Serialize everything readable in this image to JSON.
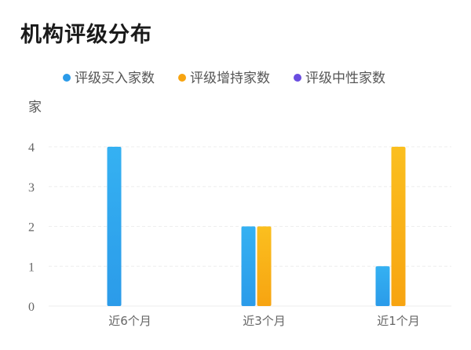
{
  "chart_data": {
    "type": "bar",
    "title": "机构评级分布",
    "unit": "家",
    "categories": [
      "近6个月",
      "近3个月",
      "近1个月"
    ],
    "series": [
      {
        "name": "评级买入家数",
        "values": [
          4,
          2,
          1
        ],
        "color": "#2b9be9",
        "color_light": "#35b1f2"
      },
      {
        "name": "评级增持家数",
        "values": [
          0,
          2,
          4
        ],
        "color": "#f7a411",
        "color_light": "#fbbf1f"
      },
      {
        "name": "评级中性家数",
        "values": [
          0,
          0,
          0
        ],
        "color": "#6a4de0",
        "color_light": "#7d5cf0"
      }
    ],
    "ylim": [
      0,
      4
    ],
    "yticks": [
      0,
      1,
      2,
      3,
      4
    ],
    "grid": true,
    "legend": "top-center"
  }
}
